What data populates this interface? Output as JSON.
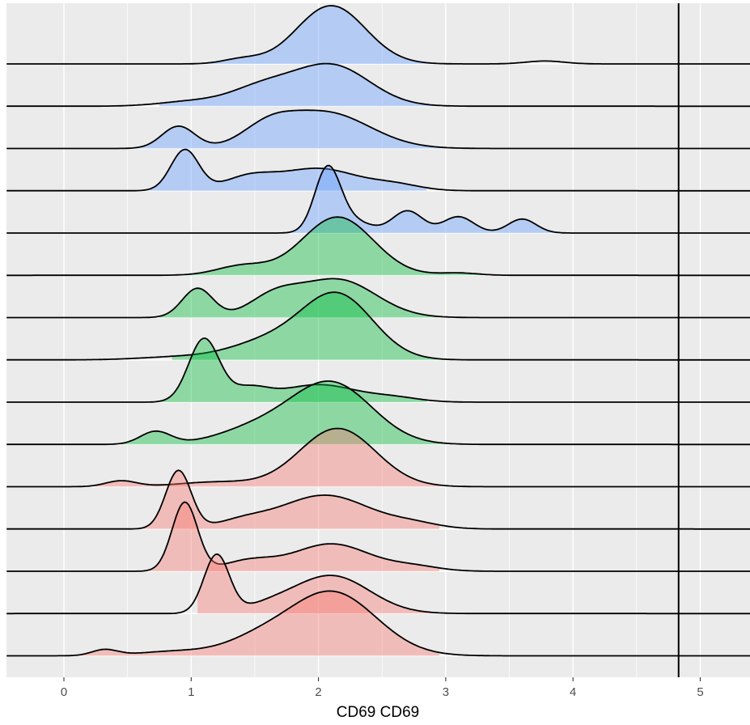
{
  "chart_data": {
    "type": "area",
    "subtype": "ridgeline-density",
    "xlabel": "CD69 CD69",
    "ylabel": "",
    "xlim": [
      -0.45,
      5.4
    ],
    "x_ticks": [
      0,
      1,
      2,
      3,
      4,
      5
    ],
    "x_tick_labels": [
      "0",
      "1",
      "2",
      "3",
      "4",
      "5"
    ],
    "grid": true,
    "y_tick_labels_shown": false,
    "legend": "none",
    "reference_line": {
      "x": 4.83,
      "color": "#000000"
    },
    "group_colors": {
      "blue": "#619CFF",
      "green": "#00BA38",
      "red": "#F8766D"
    },
    "fill_opacity": 0.4,
    "curve_domain": [
      -0.45,
      5.4
    ],
    "shade_range_note": "shaded where density is visibly non-zero",
    "series": [
      {
        "group": "blue",
        "shade": [
          0.55,
          2.95
        ],
        "peaks": [
          [
            2.1,
            1.0,
            0.27
          ],
          [
            1.4,
            0.08,
            0.15
          ],
          [
            3.78,
            0.05,
            0.15
          ]
        ]
      },
      {
        "group": "blue",
        "shade": [
          0.75,
          2.95
        ],
        "peaks": [
          [
            2.1,
            0.7,
            0.3
          ],
          [
            1.55,
            0.3,
            0.25
          ],
          [
            1.0,
            0.08,
            0.25
          ]
        ]
      },
      {
        "group": "blue",
        "shade": [
          0.55,
          3.0
        ],
        "peaks": [
          [
            2.05,
            0.62,
            0.35
          ],
          [
            1.6,
            0.28,
            0.2
          ],
          [
            0.9,
            0.38,
            0.13
          ]
        ]
      },
      {
        "group": "blue",
        "shade": [
          0.65,
          2.85
        ],
        "peaks": [
          [
            0.95,
            0.7,
            0.11
          ],
          [
            1.45,
            0.22,
            0.2
          ],
          [
            2.0,
            0.38,
            0.3
          ],
          [
            2.6,
            0.1,
            0.2
          ]
        ]
      },
      {
        "group": "blue",
        "shade": [
          1.75,
          3.85
        ],
        "peaks": [
          [
            2.07,
            1.05,
            0.1
          ],
          [
            2.25,
            0.22,
            0.15
          ],
          [
            2.7,
            0.38,
            0.12
          ],
          [
            3.1,
            0.28,
            0.12
          ],
          [
            3.6,
            0.24,
            0.11
          ]
        ]
      },
      {
        "group": "green",
        "shade": [
          0.95,
          3.3
        ],
        "peaks": [
          [
            2.15,
            1.0,
            0.28
          ],
          [
            1.4,
            0.16,
            0.2
          ],
          [
            3.1,
            0.04,
            0.15
          ]
        ]
      },
      {
        "group": "green",
        "shade": [
          0.75,
          2.95
        ],
        "peaks": [
          [
            1.05,
            0.5,
            0.12
          ],
          [
            1.65,
            0.33,
            0.2
          ],
          [
            2.15,
            0.65,
            0.3
          ]
        ]
      },
      {
        "group": "green",
        "shade": [
          0.85,
          3.0
        ],
        "peaks": [
          [
            2.15,
            1.1,
            0.28
          ],
          [
            1.6,
            0.3,
            0.3
          ],
          [
            0.9,
            0.05,
            0.3
          ]
        ]
      },
      {
        "group": "green",
        "shade": [
          0.75,
          2.85
        ],
        "peaks": [
          [
            1.1,
            1.08,
            0.12
          ],
          [
            1.45,
            0.22,
            0.15
          ],
          [
            2.0,
            0.3,
            0.3
          ],
          [
            2.6,
            0.07,
            0.2
          ]
        ]
      },
      {
        "group": "green",
        "shade": [
          0.45,
          3.05
        ],
        "peaks": [
          [
            2.1,
            1.05,
            0.32
          ],
          [
            0.72,
            0.22,
            0.12
          ],
          [
            1.5,
            0.25,
            0.3
          ]
        ]
      },
      {
        "group": "red",
        "shade": [
          0.25,
          2.95
        ],
        "peaks": [
          [
            2.15,
            1.0,
            0.3
          ],
          [
            0.45,
            0.1,
            0.12
          ],
          [
            1.2,
            0.08,
            0.3
          ]
        ]
      },
      {
        "group": "red",
        "shade": [
          0.6,
          2.95
        ],
        "peaks": [
          [
            0.9,
            1.0,
            0.1
          ],
          [
            1.4,
            0.12,
            0.2
          ],
          [
            2.05,
            0.58,
            0.35
          ],
          [
            2.75,
            0.08,
            0.2
          ]
        ]
      },
      {
        "group": "red",
        "shade": [
          0.65,
          2.95
        ],
        "peaks": [
          [
            0.95,
            1.18,
            0.1
          ],
          [
            1.45,
            0.17,
            0.2
          ],
          [
            2.1,
            0.47,
            0.3
          ],
          [
            2.75,
            0.08,
            0.2
          ]
        ]
      },
      {
        "group": "red",
        "shade": [
          1.05,
          2.95
        ],
        "peaks": [
          [
            1.2,
            1.0,
            0.1
          ],
          [
            2.1,
            0.65,
            0.3
          ],
          [
            1.6,
            0.1,
            0.2
          ]
        ]
      },
      {
        "group": "red",
        "shade": [
          0.05,
          2.95
        ],
        "peaks": [
          [
            2.1,
            1.1,
            0.35
          ],
          [
            0.32,
            0.1,
            0.1
          ],
          [
            0.9,
            0.08,
            0.3
          ],
          [
            1.5,
            0.2,
            0.25
          ]
        ]
      }
    ]
  }
}
